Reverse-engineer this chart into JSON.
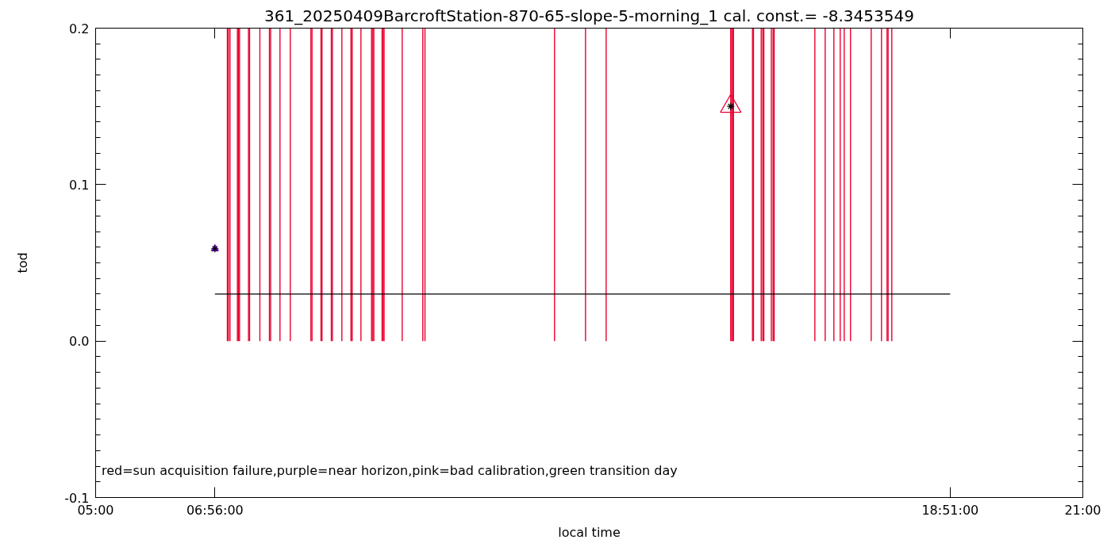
{
  "chart_data": {
    "type": "bar",
    "title": "361_20250409BarcroftStation-870-65-slope-5-morning_1 cal. const.= -8.3453549",
    "xlabel": "local time",
    "ylabel": "tod",
    "annotations": [
      "red=sun acquisition failure,purple=near horizon,pink=bad calibration,green transition day"
    ],
    "xlim": [
      5,
      21
    ],
    "xticks": [
      {
        "value": 5,
        "label": "05:00"
      },
      {
        "value": 6.9333,
        "label": "06:56:00"
      },
      {
        "value": 18.85,
        "label": "18:51:00"
      },
      {
        "value": 21,
        "label": "21:00"
      }
    ],
    "ylim": [
      -0.1,
      0.2
    ],
    "yticks": [
      -0.1,
      {
        "value": 0,
        "label": "0.0"
      },
      0.1,
      0.2
    ],
    "series": [
      {
        "color": "#ea0030",
        "x": [
          7.135,
          7.152,
          7.178,
          7.298,
          7.315,
          7.332,
          7.478,
          7.495,
          7.662,
          7.817,
          7.836,
          7.988,
          8.155,
          8.489,
          8.507,
          8.653,
          8.669,
          8.82,
          8.837,
          8.991,
          9.138,
          9.158,
          9.3,
          9.472,
          9.493,
          9.509,
          9.643,
          9.66,
          9.675,
          9.969,
          10.303,
          10.338,
          12.438,
          12.94,
          13.274,
          15.293,
          15.309,
          15.324,
          15.338,
          15.646,
          15.662,
          15.787,
          15.813,
          15.83,
          15.952,
          15.98,
          15.997,
          16.657,
          16.824,
          16.965,
          17.068,
          17.133,
          17.235,
          17.57,
          17.737,
          17.827,
          17.844,
          17.904
        ],
        "values": [
          0.2,
          0.2,
          0.2,
          0.2,
          0.2,
          0.2,
          0.2,
          0.2,
          0.2,
          0.2,
          0.2,
          0.2,
          0.2,
          0.2,
          0.2,
          0.2,
          0.2,
          0.2,
          0.2,
          0.2,
          0.2,
          0.2,
          0.2,
          0.2,
          0.2,
          0.2,
          0.2,
          0.2,
          0.2,
          0.2,
          0.2,
          0.2,
          0.2,
          0.2,
          0.2,
          0.2,
          0.2,
          0.2,
          0.2,
          0.2,
          0.2,
          0.2,
          0.2,
          0.2,
          0.2,
          0.2,
          0.2,
          0.2,
          0.2,
          0.2,
          0.2,
          0.2,
          0.2,
          0.2,
          0.2,
          0.2,
          0.2,
          0.2
        ]
      },
      {
        "type": "line",
        "color": "#000000",
        "x": [
          6.9333,
          18.85
        ],
        "values": [
          0.03,
          0.03
        ]
      },
      {
        "type": "scatter",
        "color": "#9a1aff",
        "marker": "triangle",
        "x": [
          6.9333
        ],
        "values": [
          0.059
        ]
      },
      {
        "type": "scatter",
        "color": "#ea0030",
        "marker": "triangle",
        "x": [
          15.293
        ],
        "values": [
          0.15
        ]
      },
      {
        "type": "scatter",
        "color": "#000000",
        "marker": "cross",
        "x": [
          6.9333,
          15.293
        ],
        "values": [
          0.059,
          0.15
        ]
      }
    ]
  }
}
